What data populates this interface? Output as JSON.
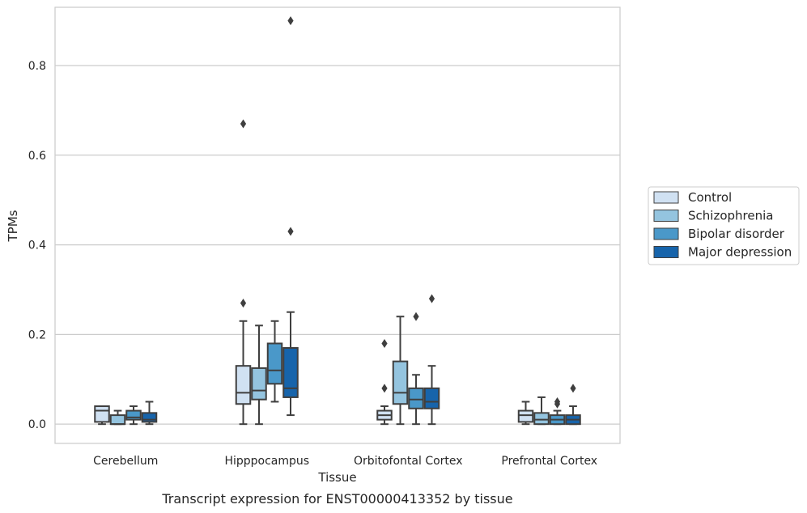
{
  "chart_data": {
    "type": "box",
    "title": "",
    "caption": "Transcript expression for ENST00000413352 by tissue",
    "xlabel": "Tissue",
    "ylabel": "TPMs",
    "ylim": [
      -0.043,
      0.93
    ],
    "yticks": [
      0.0,
      0.2,
      0.4,
      0.6,
      0.8
    ],
    "ytick_labels": [
      "0.0",
      "0.2",
      "0.4",
      "0.6",
      "0.8"
    ],
    "grid": "horizontal",
    "legend_position": "right",
    "categories": [
      "Cerebellum",
      "Hipppocampus",
      "Orbitofontal Cortex",
      "Prefrontal Cortex"
    ],
    "series": [
      {
        "name": "Control",
        "color": "#d0e1f2",
        "boxes": [
          {
            "whislo": 0.0,
            "q1": 0.005,
            "med": 0.03,
            "q3": 0.04,
            "whishi": 0.04,
            "fliers": []
          },
          {
            "whislo": 0.0,
            "q1": 0.045,
            "med": 0.07,
            "q3": 0.13,
            "whishi": 0.23,
            "fliers": [
              0.27,
              0.67
            ]
          },
          {
            "whislo": 0.0,
            "q1": 0.01,
            "med": 0.02,
            "q3": 0.03,
            "whishi": 0.04,
            "fliers": [
              0.08,
              0.18
            ]
          },
          {
            "whislo": 0.0,
            "q1": 0.005,
            "med": 0.02,
            "q3": 0.03,
            "whishi": 0.05,
            "fliers": []
          }
        ]
      },
      {
        "name": "Schizophrenia",
        "color": "#94c4df",
        "boxes": [
          {
            "whislo": 0.0,
            "q1": 0.0,
            "med": 0.0,
            "q3": 0.02,
            "whishi": 0.03,
            "fliers": []
          },
          {
            "whislo": 0.0,
            "q1": 0.055,
            "med": 0.075,
            "q3": 0.125,
            "whishi": 0.22,
            "fliers": []
          },
          {
            "whislo": 0.0,
            "q1": 0.045,
            "med": 0.07,
            "q3": 0.14,
            "whishi": 0.24,
            "fliers": []
          },
          {
            "whislo": 0.0,
            "q1": 0.0,
            "med": 0.01,
            "q3": 0.025,
            "whishi": 0.06,
            "fliers": []
          }
        ]
      },
      {
        "name": "Bipolar disorder",
        "color": "#4a98c9",
        "boxes": [
          {
            "whislo": 0.0,
            "q1": 0.01,
            "med": 0.015,
            "q3": 0.03,
            "whishi": 0.04,
            "fliers": []
          },
          {
            "whislo": 0.05,
            "q1": 0.09,
            "med": 0.12,
            "q3": 0.18,
            "whishi": 0.23,
            "fliers": []
          },
          {
            "whislo": 0.0,
            "q1": 0.035,
            "med": 0.055,
            "q3": 0.08,
            "whishi": 0.11,
            "fliers": [
              0.24
            ]
          },
          {
            "whislo": 0.0,
            "q1": 0.0,
            "med": 0.01,
            "q3": 0.02,
            "whishi": 0.03,
            "fliers": [
              0.045,
              0.05
            ]
          }
        ]
      },
      {
        "name": "Major depression",
        "color": "#1764ab",
        "boxes": [
          {
            "whislo": 0.0,
            "q1": 0.005,
            "med": 0.01,
            "q3": 0.025,
            "whishi": 0.05,
            "fliers": []
          },
          {
            "whislo": 0.02,
            "q1": 0.06,
            "med": 0.08,
            "q3": 0.17,
            "whishi": 0.25,
            "fliers": [
              0.43,
              0.9
            ]
          },
          {
            "whislo": 0.0,
            "q1": 0.035,
            "med": 0.05,
            "q3": 0.08,
            "whishi": 0.13,
            "fliers": [
              0.28
            ]
          },
          {
            "whislo": 0.0,
            "q1": 0.0,
            "med": 0.01,
            "q3": 0.02,
            "whishi": 0.04,
            "fliers": [
              0.08
            ]
          }
        ]
      }
    ]
  }
}
